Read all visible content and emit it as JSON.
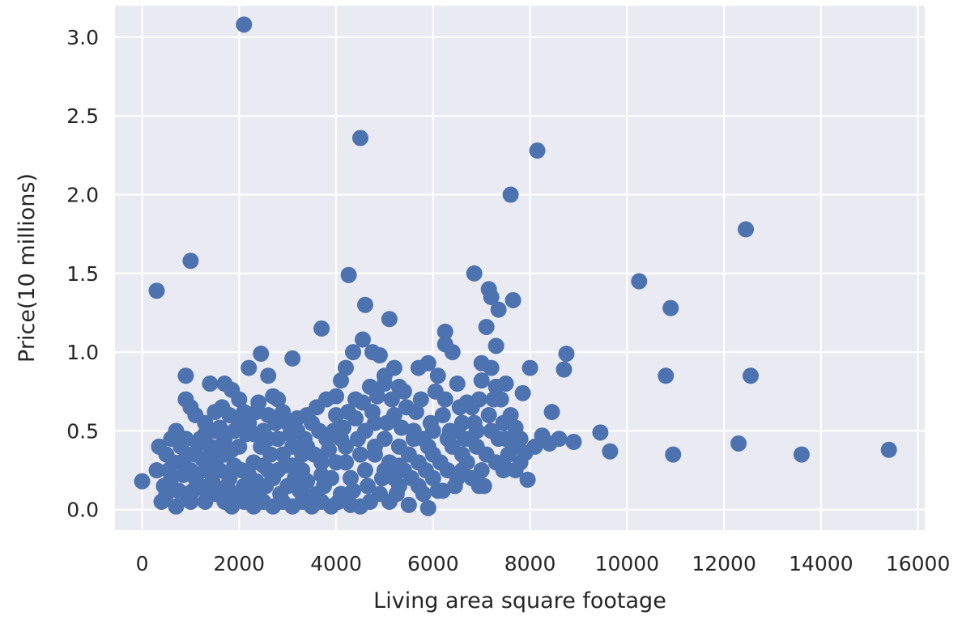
{
  "chart_data": {
    "type": "scatter",
    "title": "",
    "xlabel": "Living area square footage",
    "ylabel": "Price(10 millions)",
    "xlim": [
      -560,
      16140
    ],
    "ylim": [
      -0.13,
      3.2
    ],
    "xticks": [
      0,
      2000,
      4000,
      6000,
      8000,
      10000,
      12000,
      14000,
      16000
    ],
    "xtick_labels": [
      "0",
      "2000",
      "4000",
      "6000",
      "8000",
      "10000",
      "12000",
      "14000",
      "16000"
    ],
    "yticks": [
      0.0,
      0.5,
      1.0,
      1.5,
      2.0,
      2.5,
      3.0
    ],
    "ytick_labels": [
      "0.0",
      "0.5",
      "1.0",
      "1.5",
      "2.0",
      "2.5",
      "3.0"
    ],
    "grid": true,
    "colors": {
      "marker": "#4c72b0",
      "plot_background": "#eaeaf2",
      "grid": "#ffffff"
    },
    "series": [
      {
        "points": [
          [
            0,
            0.18
          ],
          [
            300,
            1.39
          ],
          [
            1000,
            1.58
          ],
          [
            2100,
            3.08
          ],
          [
            4500,
            2.36
          ],
          [
            4260,
            1.49
          ],
          [
            4600,
            1.3
          ],
          [
            5100,
            1.21
          ],
          [
            3700,
            1.15
          ],
          [
            2450,
            0.99
          ],
          [
            3100,
            0.96
          ],
          [
            2200,
            0.9
          ],
          [
            2600,
            0.85
          ],
          [
            900,
            0.85
          ],
          [
            1400,
            0.8
          ],
          [
            1700,
            0.8
          ],
          [
            1850,
            0.76
          ],
          [
            900,
            0.7
          ],
          [
            1000,
            0.65
          ],
          [
            1100,
            0.6
          ],
          [
            1300,
            0.55
          ],
          [
            1500,
            0.5
          ],
          [
            1650,
            0.65
          ],
          [
            2000,
            0.7
          ],
          [
            2350,
            0.62
          ],
          [
            2800,
            0.7
          ],
          [
            3000,
            0.55
          ],
          [
            3600,
            0.65
          ],
          [
            4100,
            0.82
          ],
          [
            4200,
            0.9
          ],
          [
            4350,
            1.0
          ],
          [
            4550,
            1.08
          ],
          [
            4750,
            1.0
          ],
          [
            4900,
            0.98
          ],
          [
            5200,
            0.9
          ],
          [
            5000,
            0.85
          ],
          [
            5400,
            0.75
          ],
          [
            5700,
            0.9
          ],
          [
            5900,
            0.93
          ],
          [
            6100,
            0.85
          ],
          [
            6250,
            1.13
          ],
          [
            6250,
            1.05
          ],
          [
            6400,
            1.0
          ],
          [
            6500,
            0.8
          ],
          [
            6850,
            1.5
          ],
          [
            7150,
            1.4
          ],
          [
            7200,
            1.35
          ],
          [
            7350,
            1.27
          ],
          [
            7100,
            1.16
          ],
          [
            7300,
            1.04
          ],
          [
            7650,
            1.33
          ],
          [
            7000,
            0.93
          ],
          [
            7200,
            0.9
          ],
          [
            7500,
            0.8
          ],
          [
            7600,
            2.0
          ],
          [
            8150,
            2.28
          ],
          [
            8000,
            0.9
          ],
          [
            7850,
            0.74
          ],
          [
            8750,
            0.99
          ],
          [
            8700,
            0.89
          ],
          [
            8450,
            0.62
          ],
          [
            8600,
            0.45
          ],
          [
            8900,
            0.43
          ],
          [
            9450,
            0.49
          ],
          [
            9650,
            0.37
          ],
          [
            10250,
            1.45
          ],
          [
            10900,
            1.28
          ],
          [
            10800,
            0.85
          ],
          [
            10950,
            0.35
          ],
          [
            12450,
            1.78
          ],
          [
            12550,
            0.85
          ],
          [
            12300,
            0.42
          ],
          [
            13600,
            0.35
          ],
          [
            15400,
            0.38
          ],
          [
            7950,
            0.19
          ],
          [
            6950,
            0.15
          ],
          [
            5900,
            0.01
          ],
          [
            5500,
            0.03
          ],
          [
            4500,
            0.02
          ],
          [
            8250,
            0.47
          ],
          [
            7600,
            0.6
          ],
          [
            7400,
            0.7
          ],
          [
            7700,
            0.4
          ],
          [
            7300,
            0.3
          ],
          [
            7500,
            0.26
          ],
          [
            6800,
            0.65
          ],
          [
            6600,
            0.55
          ],
          [
            6300,
            0.45
          ],
          [
            6000,
            0.35
          ],
          [
            5600,
            0.5
          ],
          [
            5200,
            0.6
          ],
          [
            4800,
            0.55
          ],
          [
            4400,
            0.7
          ],
          [
            4000,
            0.6
          ],
          [
            3800,
            0.45
          ],
          [
            3400,
            0.4
          ],
          [
            3200,
            0.5
          ],
          [
            2900,
            0.35
          ],
          [
            2600,
            0.45
          ],
          [
            2300,
            0.3
          ],
          [
            2000,
            0.4
          ],
          [
            1700,
            0.35
          ],
          [
            1400,
            0.3
          ],
          [
            1100,
            0.35
          ],
          [
            800,
            0.3
          ],
          [
            600,
            0.2
          ],
          [
            500,
            0.1
          ],
          [
            400,
            0.05
          ],
          [
            700,
            0.02
          ],
          [
            1000,
            0.05
          ],
          [
            1200,
            0.15
          ],
          [
            1500,
            0.1
          ],
          [
            1800,
            0.2
          ],
          [
            2100,
            0.15
          ],
          [
            2400,
            0.1
          ],
          [
            2700,
            0.2
          ],
          [
            3000,
            0.15
          ],
          [
            3300,
            0.25
          ],
          [
            3600,
            0.1
          ],
          [
            3900,
            0.2
          ],
          [
            4200,
            0.3
          ],
          [
            4500,
            0.35
          ],
          [
            4800,
            0.4
          ],
          [
            5100,
            0.3
          ],
          [
            5400,
            0.25
          ],
          [
            5700,
            0.3
          ],
          [
            6000,
            0.2
          ],
          [
            6300,
            0.25
          ],
          [
            6600,
            0.35
          ],
          [
            6900,
            0.4
          ],
          [
            7200,
            0.5
          ],
          [
            7500,
            0.45
          ],
          [
            7800,
            0.3
          ],
          [
            8100,
            0.4
          ],
          [
            800,
            0.4
          ],
          [
            900,
            0.45
          ],
          [
            1200,
            0.45
          ],
          [
            1600,
            0.4
          ],
          [
            1900,
            0.5
          ],
          [
            2200,
            0.55
          ],
          [
            2500,
            0.5
          ],
          [
            2800,
            0.45
          ],
          [
            3100,
            0.4
          ],
          [
            3500,
            0.55
          ],
          [
            3700,
            0.3
          ],
          [
            4100,
            0.45
          ],
          [
            4600,
            0.5
          ],
          [
            5000,
            0.45
          ],
          [
            5300,
            0.4
          ],
          [
            5800,
            0.45
          ],
          [
            6200,
            0.6
          ],
          [
            6500,
            0.5
          ],
          [
            6700,
            0.3
          ],
          [
            7000,
            0.25
          ],
          [
            600,
            0.45
          ],
          [
            700,
            0.5
          ],
          [
            500,
            0.35
          ],
          [
            350,
            0.4
          ],
          [
            300,
            0.25
          ],
          [
            450,
            0.15
          ],
          [
            900,
            0.1
          ],
          [
            1300,
            0.05
          ],
          [
            1700,
            0.05
          ],
          [
            2100,
            0.05
          ],
          [
            2500,
            0.05
          ],
          [
            2900,
            0.05
          ],
          [
            3300,
            0.05
          ],
          [
            3700,
            0.05
          ],
          [
            4100,
            0.1
          ],
          [
            4900,
            0.1
          ],
          [
            5300,
            0.15
          ],
          [
            5700,
            0.15
          ],
          [
            6100,
            0.12
          ],
          [
            6500,
            0.2
          ],
          [
            6800,
            0.2
          ],
          [
            7100,
            0.35
          ],
          [
            1000,
            0.25
          ],
          [
            1300,
            0.25
          ],
          [
            1600,
            0.25
          ],
          [
            1900,
            0.28
          ],
          [
            2200,
            0.22
          ],
          [
            2500,
            0.28
          ],
          [
            2800,
            0.25
          ],
          [
            3100,
            0.28
          ],
          [
            3400,
            0.18
          ],
          [
            3700,
            0.22
          ],
          [
            4000,
            0.3
          ],
          [
            4300,
            0.2
          ],
          [
            4600,
            0.25
          ],
          [
            5000,
            0.25
          ],
          [
            5500,
            0.35
          ],
          [
            5900,
            0.4
          ],
          [
            6400,
            0.4
          ],
          [
            6900,
            0.5
          ],
          [
            1150,
            0.42
          ],
          [
            1450,
            0.18
          ],
          [
            1750,
            0.15
          ],
          [
            2050,
            0.25
          ],
          [
            2350,
            0.18
          ],
          [
            2650,
            0.35
          ],
          [
            2950,
            0.28
          ],
          [
            3250,
            0.12
          ],
          [
            3550,
            0.35
          ],
          [
            3850,
            0.38
          ],
          [
            4150,
            0.52
          ],
          [
            4450,
            0.45
          ],
          [
            4750,
            0.62
          ],
          [
            5050,
            0.55
          ],
          [
            5350,
            0.52
          ],
          [
            5650,
            0.62
          ],
          [
            5950,
            0.55
          ],
          [
            6250,
            0.7
          ],
          [
            6550,
            0.65
          ],
          [
            6850,
            0.55
          ],
          [
            7150,
            0.6
          ],
          [
            7450,
            0.55
          ],
          [
            1050,
            0.12
          ],
          [
            1350,
            0.1
          ],
          [
            1650,
            0.12
          ],
          [
            1950,
            0.1
          ],
          [
            2250,
            0.12
          ],
          [
            2550,
            0.15
          ],
          [
            2850,
            0.1
          ],
          [
            3150,
            0.2
          ],
          [
            3450,
            0.08
          ],
          [
            3750,
            0.15
          ],
          [
            4050,
            0.05
          ],
          [
            4350,
            0.12
          ],
          [
            4650,
            0.15
          ],
          [
            4950,
            0.2
          ],
          [
            5250,
            0.1
          ],
          [
            5550,
            0.2
          ],
          [
            5850,
            0.25
          ],
          [
            6150,
            0.3
          ],
          [
            6450,
            0.15
          ],
          [
            6750,
            0.45
          ],
          [
            7050,
            0.15
          ],
          [
            7350,
            0.45
          ],
          [
            1250,
            0.32
          ],
          [
            1550,
            0.33
          ],
          [
            1850,
            0.38
          ],
          [
            2150,
            0.48
          ],
          [
            2450,
            0.4
          ],
          [
            2750,
            0.55
          ],
          [
            3050,
            0.48
          ],
          [
            3350,
            0.45
          ],
          [
            3650,
            0.5
          ],
          [
            3950,
            0.5
          ],
          [
            4250,
            0.62
          ],
          [
            4550,
            0.68
          ],
          [
            4850,
            0.72
          ],
          [
            5150,
            0.7
          ],
          [
            5450,
            0.65
          ],
          [
            5750,
            0.7
          ],
          [
            6050,
            0.75
          ],
          [
            6350,
            0.5
          ],
          [
            6650,
            0.45
          ],
          [
            6950,
            0.7
          ],
          [
            7250,
            0.7
          ],
          [
            7550,
            0.35
          ],
          [
            650,
            0.3
          ],
          [
            750,
            0.12
          ],
          [
            850,
            0.22
          ],
          [
            950,
            0.35
          ],
          [
            550,
            0.25
          ],
          [
            1850,
            0.02
          ],
          [
            2300,
            0.02
          ],
          [
            2700,
            0.02
          ],
          [
            3100,
            0.02
          ],
          [
            3500,
            0.02
          ],
          [
            3900,
            0.02
          ],
          [
            4300,
            0.03
          ],
          [
            5100,
            0.05
          ],
          [
            5300,
            0.28
          ],
          [
            4200,
            0.4
          ],
          [
            3300,
            0.35
          ],
          [
            2600,
            0.25
          ],
          [
            1700,
            0.45
          ],
          [
            1400,
            0.4
          ],
          [
            1100,
            0.2
          ],
          [
            7800,
            0.45
          ],
          [
            7700,
            0.52
          ],
          [
            8400,
            0.42
          ],
          [
            7900,
            0.36
          ],
          [
            6600,
            0.25
          ],
          [
            6000,
            0.5
          ],
          [
            5600,
            0.45
          ],
          [
            4800,
            0.35
          ],
          [
            4400,
            0.58
          ],
          [
            4700,
            0.78
          ],
          [
            5000,
            0.8
          ],
          [
            5300,
            0.78
          ],
          [
            6700,
            0.68
          ],
          [
            7000,
            0.82
          ],
          [
            7300,
            0.78
          ],
          [
            2900,
            0.62
          ],
          [
            3200,
            0.58
          ],
          [
            3400,
            0.6
          ],
          [
            3800,
            0.7
          ],
          [
            4000,
            0.72
          ],
          [
            1500,
            0.62
          ],
          [
            1800,
            0.6
          ],
          [
            2100,
            0.62
          ],
          [
            2400,
            0.68
          ],
          [
            2700,
            0.72
          ],
          [
            1300,
            0.48
          ],
          [
            1600,
            0.52
          ],
          [
            2000,
            0.55
          ],
          [
            2300,
            0.48
          ],
          [
            2600,
            0.6
          ],
          [
            7700,
            0.25
          ],
          [
            7450,
            0.25
          ],
          [
            6200,
            0.12
          ],
          [
            5800,
            0.1
          ],
          [
            5200,
            0.2
          ],
          [
            4700,
            0.05
          ]
        ]
      }
    ]
  }
}
